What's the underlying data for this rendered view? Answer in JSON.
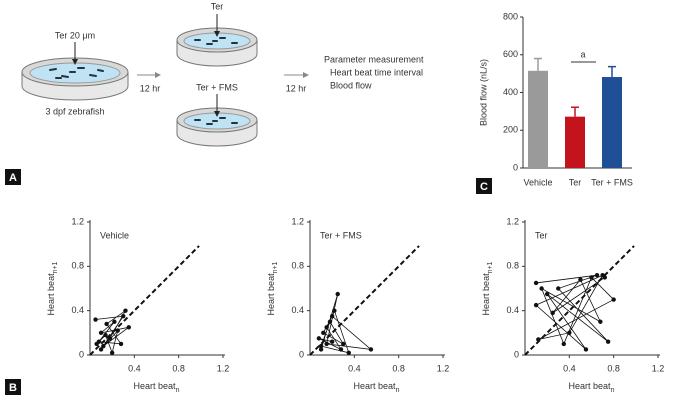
{
  "panel_labels": [
    "A",
    "B",
    "C"
  ],
  "panel_a": {
    "treatment": "Ter 20 μm",
    "fish": "3 dpf zebrafish",
    "time_1": "12 hr",
    "group_1": "Ter",
    "group_2": "Ter + FMS",
    "time_2": "12 hr",
    "measurement": {
      "title": "Parameter measurement",
      "items": [
        "Heart beat time interval",
        "Blood flow"
      ]
    }
  },
  "chart_data": [
    {
      "type": "bar",
      "ylabel": "Blood flow (nL/s)",
      "categories": [
        "Vehicle",
        "Ter",
        "Ter + FMS"
      ],
      "values": [
        515,
        272,
        482
      ],
      "errors": [
        65,
        50,
        55
      ],
      "colors": [
        "#9a9a9a",
        "#c3141d",
        "#1f4f95"
      ],
      "ylim": [
        0,
        800
      ],
      "yticks": [
        0,
        200,
        400,
        600,
        800
      ],
      "annotation": "a"
    },
    {
      "type": "scatter",
      "title": "Vehicle",
      "xlabel": {
        "text": "Heart beat",
        "sub": "n"
      },
      "ylabel": {
        "text": "Heart beat",
        "sub": "n+1"
      },
      "x": [
        0.05,
        0.3,
        0.12,
        0.35,
        0.1,
        0.22,
        0.08,
        0.28,
        0.15,
        0.32,
        0.18,
        0.1,
        0.25,
        0.2,
        0.14,
        0.06
      ],
      "y": [
        0.32,
        0.35,
        0.08,
        0.25,
        0.2,
        0.3,
        0.12,
        0.1,
        0.28,
        0.4,
        0.15,
        0.05,
        0.22,
        0.02,
        0.18,
        0.1
      ],
      "xlim": [
        0,
        1.2
      ],
      "ylim": [
        0,
        1.2
      ],
      "xticks": [
        0.4,
        0.8,
        1.2
      ],
      "yticks": [
        0,
        0.4,
        0.8,
        1.2
      ]
    },
    {
      "type": "scatter",
      "title": "Ter + FMS",
      "xlabel": {
        "text": "Heart beat",
        "sub": "n"
      },
      "ylabel": {
        "text": "Heart beat",
        "sub": "n+1"
      },
      "x": [
        0.1,
        0.25,
        0.15,
        0.55,
        0.2,
        0.12,
        0.3,
        0.18,
        0.1,
        0.35,
        0.22,
        0.15,
        0.28,
        0.08,
        0.2
      ],
      "y": [
        0.05,
        0.55,
        0.1,
        0.05,
        0.35,
        0.2,
        0.1,
        0.3,
        0.08,
        0.02,
        0.4,
        0.25,
        0.05,
        0.15,
        0.12
      ],
      "xlim": [
        0,
        1.2
      ],
      "ylim": [
        0,
        1.2
      ],
      "xticks": [
        0.4,
        0.8,
        1.2
      ],
      "yticks": [
        0,
        0.4,
        0.8,
        1.2
      ]
    },
    {
      "type": "scatter",
      "title": "Ter",
      "xlabel": {
        "text": "Heart beat",
        "sub": "n"
      },
      "ylabel": {
        "text": "Heart beat",
        "sub": "n+1"
      },
      "x": [
        0.1,
        0.65,
        0.3,
        0.75,
        0.2,
        0.55,
        0.1,
        0.7,
        0.4,
        0.12,
        0.8,
        0.6,
        0.35,
        0.15,
        0.68,
        0.5,
        0.25,
        0.72
      ],
      "y": [
        0.65,
        0.72,
        0.6,
        0.12,
        0.55,
        0.05,
        0.45,
        0.72,
        0.2,
        0.14,
        0.5,
        0.7,
        0.1,
        0.6,
        0.3,
        0.68,
        0.38,
        0.7
      ],
      "xlim": [
        0,
        1.2
      ],
      "ylim": [
        0,
        1.2
      ],
      "xticks": [
        0.4,
        0.8,
        1.2
      ],
      "yticks": [
        0,
        0.4,
        0.8,
        1.2
      ]
    }
  ]
}
